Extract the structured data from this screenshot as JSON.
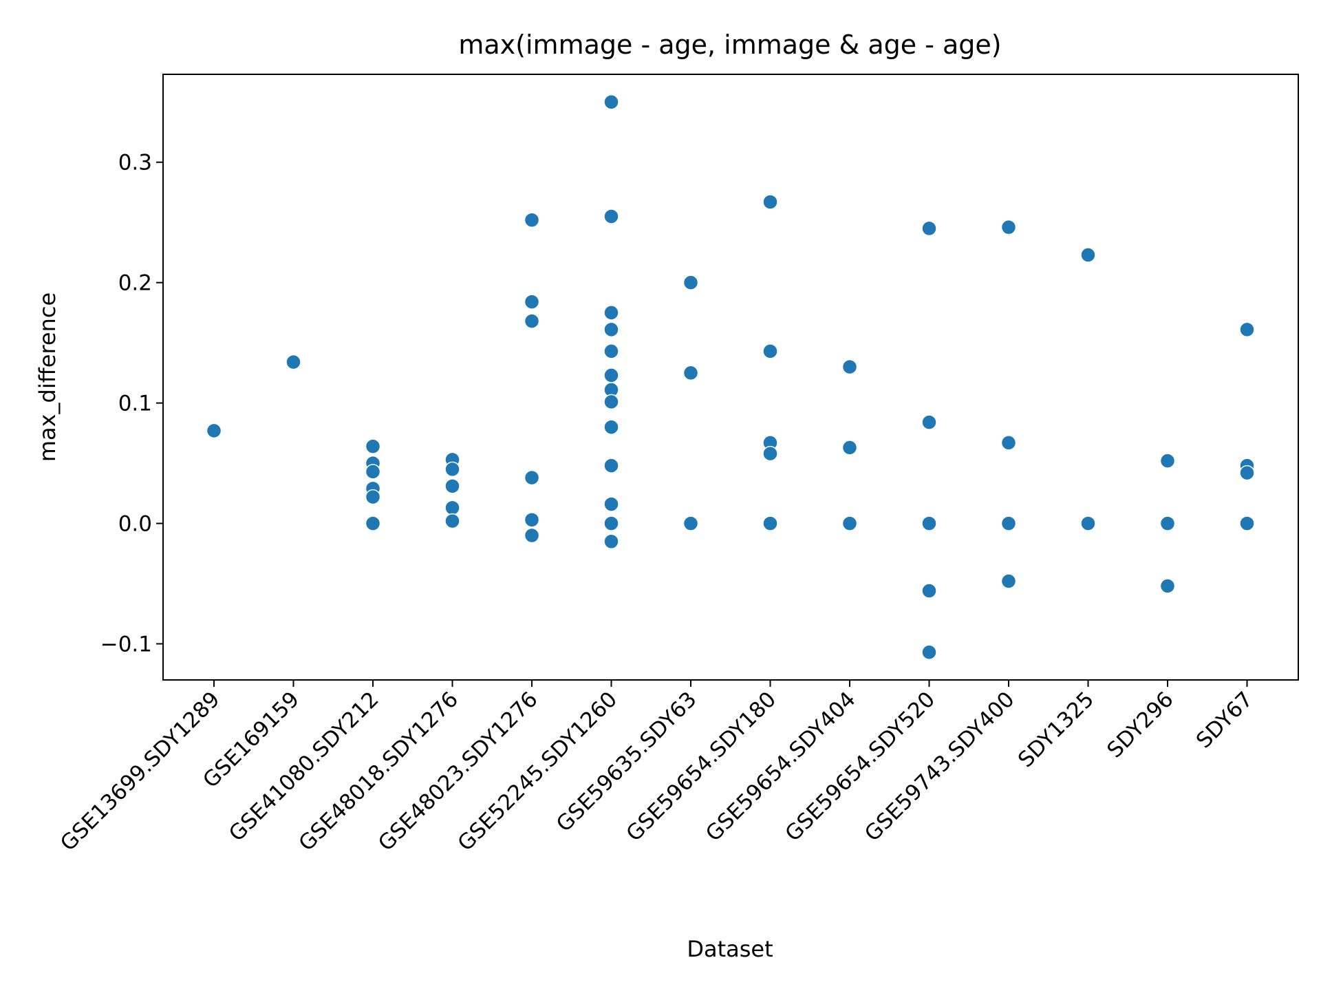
{
  "chart_data": {
    "type": "scatter",
    "title": "max(immage - age, immage & age - age)",
    "xlabel": "Dataset",
    "ylabel": "max_difference",
    "ylim": [
      -0.13,
      0.373
    ],
    "yticks": [
      -0.1,
      0.0,
      0.1,
      0.2,
      0.3
    ],
    "ytick_labels": [
      "−0.1",
      "0.0",
      "0.1",
      "0.2",
      "0.3"
    ],
    "grid": false,
    "legend": "none",
    "marker_color": "#1f77b4",
    "categories": [
      "GSE13699.SDY1289",
      "GSE169159",
      "GSE41080.SDY212",
      "GSE48018.SDY1276",
      "GSE48023.SDY1276",
      "GSE52245.SDY1260",
      "GSE59635.SDY63",
      "GSE59654.SDY180",
      "GSE59654.SDY404",
      "GSE59654.SDY520",
      "GSE59743.SDY400",
      "SDY1325",
      "SDY296",
      "SDY67"
    ],
    "points": [
      {
        "x": "GSE13699.SDY1289",
        "y": 0.077
      },
      {
        "x": "GSE169159",
        "y": 0.134
      },
      {
        "x": "GSE41080.SDY212",
        "y": 0.064
      },
      {
        "x": "GSE41080.SDY212",
        "y": 0.05
      },
      {
        "x": "GSE41080.SDY212",
        "y": 0.043
      },
      {
        "x": "GSE41080.SDY212",
        "y": 0.029
      },
      {
        "x": "GSE41080.SDY212",
        "y": 0.022
      },
      {
        "x": "GSE41080.SDY212",
        "y": 0.0
      },
      {
        "x": "GSE48018.SDY1276",
        "y": 0.053
      },
      {
        "x": "GSE48018.SDY1276",
        "y": 0.045
      },
      {
        "x": "GSE48018.SDY1276",
        "y": 0.031
      },
      {
        "x": "GSE48018.SDY1276",
        "y": 0.013
      },
      {
        "x": "GSE48018.SDY1276",
        "y": 0.002
      },
      {
        "x": "GSE48023.SDY1276",
        "y": 0.252
      },
      {
        "x": "GSE48023.SDY1276",
        "y": 0.184
      },
      {
        "x": "GSE48023.SDY1276",
        "y": 0.168
      },
      {
        "x": "GSE48023.SDY1276",
        "y": 0.038
      },
      {
        "x": "GSE48023.SDY1276",
        "y": 0.003
      },
      {
        "x": "GSE48023.SDY1276",
        "y": -0.01
      },
      {
        "x": "GSE52245.SDY1260",
        "y": 0.35
      },
      {
        "x": "GSE52245.SDY1260",
        "y": 0.255
      },
      {
        "x": "GSE52245.SDY1260",
        "y": 0.175
      },
      {
        "x": "GSE52245.SDY1260",
        "y": 0.161
      },
      {
        "x": "GSE52245.SDY1260",
        "y": 0.143
      },
      {
        "x": "GSE52245.SDY1260",
        "y": 0.123
      },
      {
        "x": "GSE52245.SDY1260",
        "y": 0.111
      },
      {
        "x": "GSE52245.SDY1260",
        "y": 0.101
      },
      {
        "x": "GSE52245.SDY1260",
        "y": 0.08
      },
      {
        "x": "GSE52245.SDY1260",
        "y": 0.048
      },
      {
        "x": "GSE52245.SDY1260",
        "y": 0.016
      },
      {
        "x": "GSE52245.SDY1260",
        "y": 0.0
      },
      {
        "x": "GSE52245.SDY1260",
        "y": -0.015
      },
      {
        "x": "GSE59635.SDY63",
        "y": 0.2
      },
      {
        "x": "GSE59635.SDY63",
        "y": 0.125
      },
      {
        "x": "GSE59635.SDY63",
        "y": 0.0
      },
      {
        "x": "GSE59654.SDY180",
        "y": 0.267
      },
      {
        "x": "GSE59654.SDY180",
        "y": 0.143
      },
      {
        "x": "GSE59654.SDY180",
        "y": 0.067
      },
      {
        "x": "GSE59654.SDY180",
        "y": 0.058
      },
      {
        "x": "GSE59654.SDY180",
        "y": 0.0
      },
      {
        "x": "GSE59654.SDY404",
        "y": 0.13
      },
      {
        "x": "GSE59654.SDY404",
        "y": 0.063
      },
      {
        "x": "GSE59654.SDY404",
        "y": 0.0
      },
      {
        "x": "GSE59654.SDY520",
        "y": 0.245
      },
      {
        "x": "GSE59654.SDY520",
        "y": 0.084
      },
      {
        "x": "GSE59654.SDY520",
        "y": 0.0
      },
      {
        "x": "GSE59654.SDY520",
        "y": -0.056
      },
      {
        "x": "GSE59654.SDY520",
        "y": -0.107
      },
      {
        "x": "GSE59743.SDY400",
        "y": 0.246
      },
      {
        "x": "GSE59743.SDY400",
        "y": 0.067
      },
      {
        "x": "GSE59743.SDY400",
        "y": 0.0
      },
      {
        "x": "GSE59743.SDY400",
        "y": -0.048
      },
      {
        "x": "SDY1325",
        "y": 0.223
      },
      {
        "x": "SDY1325",
        "y": 0.0
      },
      {
        "x": "SDY296",
        "y": 0.052
      },
      {
        "x": "SDY296",
        "y": 0.0
      },
      {
        "x": "SDY296",
        "y": -0.052
      },
      {
        "x": "SDY67",
        "y": 0.161
      },
      {
        "x": "SDY67",
        "y": 0.048
      },
      {
        "x": "SDY67",
        "y": 0.042
      },
      {
        "x": "SDY67",
        "y": 0.0
      }
    ]
  }
}
